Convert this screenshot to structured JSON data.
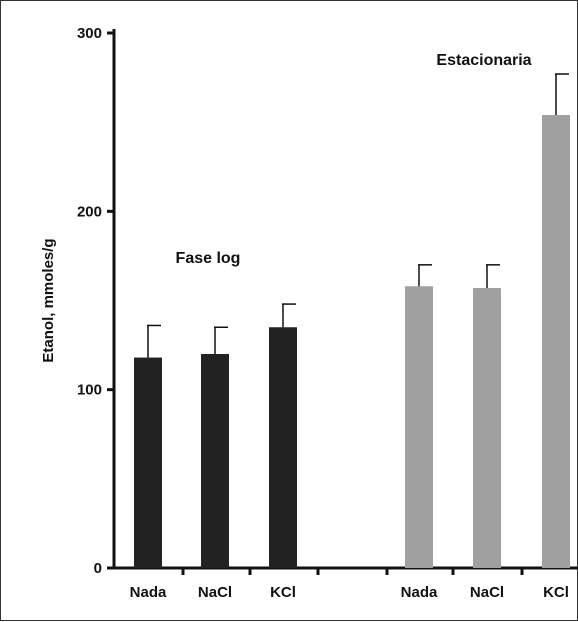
{
  "chart_data": {
    "type": "bar",
    "title": "",
    "xlabel": "",
    "ylabel": "Etanol, mmoles/g",
    "ylim": [
      0,
      300
    ],
    "yticks": [
      0,
      100,
      200,
      300
    ],
    "groups": [
      {
        "annotation": "Fase log",
        "color": "#222222",
        "categories": [
          "Nada",
          "NaCl",
          "KCl"
        ],
        "values": [
          118,
          120,
          135
        ],
        "errors": [
          18,
          15,
          13
        ]
      },
      {
        "annotation": "Estacionaria",
        "color": "#a0a0a0",
        "categories": [
          "Nada",
          "NaCl",
          "KCl"
        ],
        "values": [
          158,
          157,
          254
        ],
        "errors": [
          12,
          13,
          23
        ]
      }
    ],
    "grid": false,
    "legend": "none"
  }
}
